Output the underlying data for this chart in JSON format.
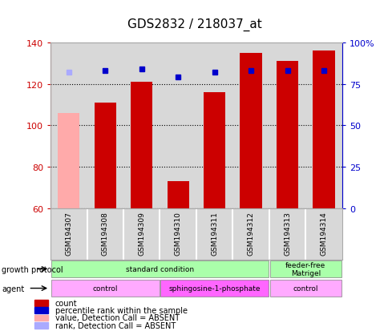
{
  "title": "GDS2832 / 218037_at",
  "samples": [
    "GSM194307",
    "GSM194308",
    "GSM194309",
    "GSM194310",
    "GSM194311",
    "GSM194312",
    "GSM194313",
    "GSM194314"
  ],
  "counts": [
    106,
    111,
    121,
    73,
    116,
    135,
    131,
    136
  ],
  "count_absent": [
    true,
    false,
    false,
    false,
    false,
    false,
    false,
    false
  ],
  "percentile_ranks": [
    82,
    83,
    84,
    79,
    82,
    83,
    83,
    83
  ],
  "rank_absent": [
    true,
    false,
    false,
    false,
    false,
    false,
    false,
    false
  ],
  "ylim_left": [
    60,
    140
  ],
  "ylim_right": [
    0,
    100
  ],
  "yticks_left": [
    60,
    80,
    100,
    120,
    140
  ],
  "yticks_right": [
    0,
    25,
    50,
    75,
    100
  ],
  "yticklabels_right": [
    "0",
    "25",
    "50",
    "75",
    "100%"
  ],
  "bar_color": "#cc0000",
  "bar_absent_color": "#ffaaaa",
  "dot_color": "#0000cc",
  "dot_absent_color": "#aaaaff",
  "growth_protocol_groups": [
    {
      "label": "standard condition",
      "start": 0,
      "end": 6,
      "color": "#aaffaa"
    },
    {
      "label": "feeder-free\nMatrigel",
      "start": 6,
      "end": 8,
      "color": "#aaffaa"
    }
  ],
  "agent_groups": [
    {
      "label": "control",
      "start": 0,
      "end": 3,
      "color": "#ffaaff"
    },
    {
      "label": "sphingosine-1-phosphate",
      "start": 3,
      "end": 6,
      "color": "#ff66ff"
    },
    {
      "label": "control",
      "start": 6,
      "end": 8,
      "color": "#ffaaff"
    }
  ],
  "legend_items": [
    {
      "label": "count",
      "color": "#cc0000"
    },
    {
      "label": "percentile rank within the sample",
      "color": "#0000cc"
    },
    {
      "label": "value, Detection Call = ABSENT",
      "color": "#ffaaaa"
    },
    {
      "label": "rank, Detection Call = ABSENT",
      "color": "#aaaaff"
    }
  ],
  "left_axis_color": "#cc0000",
  "right_axis_color": "#0000cc",
  "grid_color": "#000000",
  "background_color": "#ffffff",
  "plot_bg_color": "#d8d8d8"
}
